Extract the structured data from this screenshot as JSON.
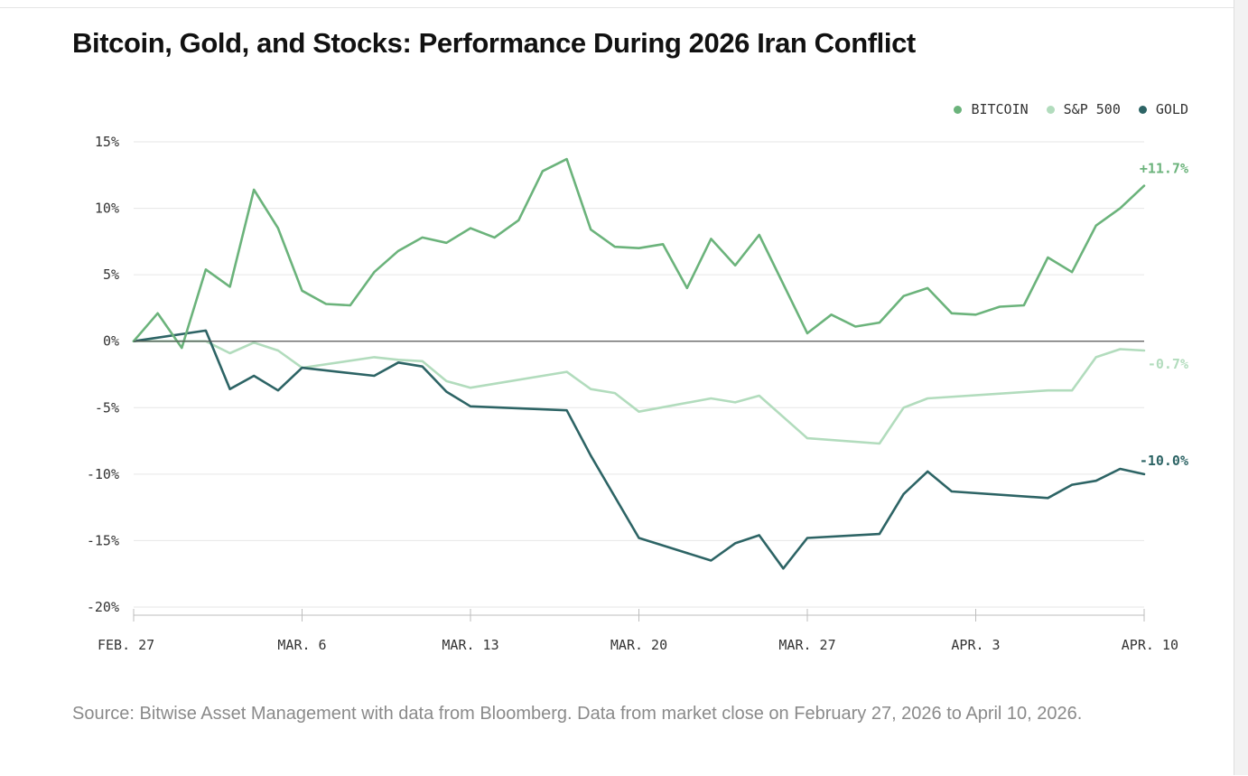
{
  "title": "Bitcoin, Gold, and Stocks: Performance During 2026 Iran Conflict",
  "source": "Source: Bitwise Asset Management with data from Bloomberg. Data from market close on February 27, 2026 to April 10, 2026.",
  "colors": {
    "bitcoin": "#6bb37b",
    "sp500": "#b2dcbd",
    "gold": "#2d6465",
    "grid": "#e6e6e6",
    "zero_line": "#555555"
  },
  "chart_data": {
    "type": "line",
    "title": "Bitcoin, Gold, and Stocks: Performance During 2026 Iran Conflict",
    "xlabel": "",
    "ylabel": "",
    "x_range": [
      0,
      42
    ],
    "ylim": [
      -20,
      15
    ],
    "y_ticks": [
      15,
      10,
      5,
      0,
      -5,
      -10,
      -15,
      -20
    ],
    "y_tick_labels": [
      "15%",
      "10%",
      "5%",
      "0%",
      "-5%",
      "-10%",
      "-15%",
      "-20%"
    ],
    "x_ticks": [
      0,
      7,
      14,
      21,
      28,
      35,
      42
    ],
    "x_tick_labels": [
      "FEB. 27",
      "MAR. 6",
      "MAR. 13",
      "MAR. 20",
      "MAR. 27",
      "APR. 3",
      "APR. 10"
    ],
    "x_unit": "days since Feb. 27, 2026",
    "legend": [
      "BITCOIN",
      "S&P 500",
      "GOLD"
    ],
    "legend_position": "top-right",
    "series": [
      {
        "name": "BITCOIN",
        "end_label": "+11.7%",
        "points": [
          [
            0,
            0
          ],
          [
            1,
            2.1
          ],
          [
            2,
            -0.5
          ],
          [
            3,
            5.4
          ],
          [
            4,
            4.1
          ],
          [
            5,
            11.4
          ],
          [
            6,
            8.5
          ],
          [
            7,
            3.8
          ],
          [
            8,
            2.8
          ],
          [
            9,
            2.7
          ],
          [
            10,
            5.2
          ],
          [
            11,
            6.8
          ],
          [
            12,
            7.8
          ],
          [
            13,
            7.4
          ],
          [
            14,
            8.5
          ],
          [
            15,
            7.8
          ],
          [
            16,
            9.1
          ],
          [
            17,
            12.8
          ],
          [
            18,
            13.7
          ],
          [
            19,
            8.4
          ],
          [
            20,
            7.1
          ],
          [
            21,
            7.0
          ],
          [
            22,
            7.3
          ],
          [
            23,
            4.0
          ],
          [
            24,
            7.7
          ],
          [
            25,
            5.7
          ],
          [
            26,
            8.0
          ],
          [
            28,
            0.6
          ],
          [
            29,
            2.0
          ],
          [
            30,
            1.1
          ],
          [
            31,
            1.4
          ],
          [
            32,
            3.4
          ],
          [
            33,
            4.0
          ],
          [
            34,
            2.1
          ],
          [
            35,
            2.0
          ],
          [
            36,
            2.6
          ],
          [
            37,
            2.7
          ],
          [
            38,
            6.3
          ],
          [
            39,
            5.2
          ],
          [
            40,
            8.7
          ],
          [
            41,
            10.0
          ],
          [
            42,
            11.7
          ]
        ]
      },
      {
        "name": "S&P 500",
        "end_label": "-0.7%",
        "points": [
          [
            0,
            0
          ],
          [
            1,
            0
          ],
          [
            2,
            0
          ],
          [
            3,
            0
          ],
          [
            4,
            -0.9
          ],
          [
            5,
            -0.1
          ],
          [
            6,
            -0.7
          ],
          [
            7,
            -2.0
          ],
          [
            10,
            -1.2
          ],
          [
            11,
            -1.4
          ],
          [
            12,
            -1.5
          ],
          [
            13,
            -3.0
          ],
          [
            14,
            -3.5
          ],
          [
            18,
            -2.3
          ],
          [
            19,
            -3.6
          ],
          [
            20,
            -3.9
          ],
          [
            21,
            -5.3
          ],
          [
            24,
            -4.3
          ],
          [
            25,
            -4.6
          ],
          [
            26,
            -4.1
          ],
          [
            28,
            -7.3
          ],
          [
            31,
            -7.7
          ],
          [
            32,
            -5.0
          ],
          [
            33,
            -4.3
          ],
          [
            38,
            -3.7
          ],
          [
            39,
            -3.7
          ],
          [
            40,
            -1.2
          ],
          [
            41,
            -0.6
          ],
          [
            42,
            -0.7
          ]
        ]
      },
      {
        "name": "GOLD",
        "end_label": "-10.0%",
        "points": [
          [
            0,
            0
          ],
          [
            3,
            0.8
          ],
          [
            4,
            -3.6
          ],
          [
            5,
            -2.6
          ],
          [
            6,
            -3.7
          ],
          [
            7,
            -2.0
          ],
          [
            10,
            -2.6
          ],
          [
            11,
            -1.6
          ],
          [
            12,
            -1.9
          ],
          [
            13,
            -3.8
          ],
          [
            14,
            -4.9
          ],
          [
            18,
            -5.2
          ],
          [
            19,
            -8.6
          ],
          [
            21,
            -14.8
          ],
          [
            24,
            -16.5
          ],
          [
            25,
            -15.2
          ],
          [
            26,
            -14.6
          ],
          [
            27,
            -17.1
          ],
          [
            28,
            -14.8
          ],
          [
            31,
            -14.5
          ],
          [
            32,
            -11.5
          ],
          [
            33,
            -9.8
          ],
          [
            34,
            -11.3
          ],
          [
            38,
            -11.8
          ],
          [
            39,
            -10.8
          ],
          [
            40,
            -10.5
          ],
          [
            41,
            -9.6
          ],
          [
            42,
            -10.0
          ]
        ]
      }
    ]
  }
}
